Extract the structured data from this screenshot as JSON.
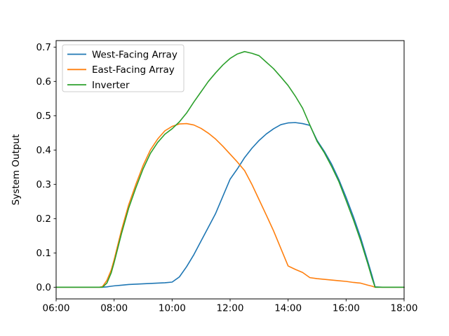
{
  "figure": {
    "background": "#ffffff"
  },
  "chart_data": {
    "type": "line",
    "title": "",
    "xlabel": "",
    "ylabel": "System Output",
    "grid": false,
    "xlim_hours": [
      6,
      18
    ],
    "ylim": [
      -0.034,
      0.719
    ],
    "axis_color": "#000000",
    "x_ticks": [
      {
        "label": "06:00",
        "hour": 6
      },
      {
        "label": "08:00",
        "hour": 8
      },
      {
        "label": "10:00",
        "hour": 10
      },
      {
        "label": "12:00",
        "hour": 12
      },
      {
        "label": "14:00",
        "hour": 14
      },
      {
        "label": "16:00",
        "hour": 16
      },
      {
        "label": "18:00",
        "hour": 18
      }
    ],
    "y_ticks": [
      {
        "label": "0.0",
        "value": 0.0
      },
      {
        "label": "0.1",
        "value": 0.1
      },
      {
        "label": "0.2",
        "value": 0.2
      },
      {
        "label": "0.3",
        "value": 0.3
      },
      {
        "label": "0.4",
        "value": 0.4
      },
      {
        "label": "0.5",
        "value": 0.5
      },
      {
        "label": "0.6",
        "value": 0.6
      },
      {
        "label": "0.7",
        "value": 0.7
      }
    ],
    "legend": {
      "position": "upper-left",
      "border_color": "#cccccc",
      "background": "#ffffff"
    },
    "x_hours": [
      6,
      6.5,
      7,
      7.25,
      7.5,
      7.6,
      7.75,
      7.9,
      8,
      8.25,
      8.5,
      8.75,
      9,
      9.25,
      9.5,
      9.75,
      10,
      10.25,
      10.5,
      10.75,
      11,
      11.25,
      11.5,
      11.75,
      12,
      12.25,
      12.5,
      12.75,
      13,
      13.25,
      13.5,
      13.75,
      14,
      14.25,
      14.5,
      14.75,
      15,
      15.25,
      15.5,
      15.75,
      16,
      16.25,
      16.5,
      16.75,
      16.9,
      17,
      17.25,
      17.5,
      18
    ],
    "series": [
      {
        "name": "West-Facing Array",
        "color": "#1f77b4",
        "values": [
          0,
          0,
          0,
          0,
          0,
          0,
          0.001,
          0.003,
          0.004,
          0.006,
          0.008,
          0.009,
          0.01,
          0.011,
          0.012,
          0.013,
          0.015,
          0.03,
          0.06,
          0.095,
          0.135,
          0.175,
          0.215,
          0.265,
          0.315,
          0.345,
          0.378,
          0.405,
          0.428,
          0.447,
          0.462,
          0.474,
          0.479,
          0.48,
          0.477,
          0.472,
          0.428,
          0.396,
          0.359,
          0.314,
          0.262,
          0.206,
          0.145,
          0.075,
          0.032,
          0.001,
          0,
          0,
          0
        ]
      },
      {
        "name": "East-Facing Array",
        "color": "#ff7f0e",
        "values": [
          0,
          0,
          0,
          0,
          0,
          0.002,
          0.02,
          0.05,
          0.08,
          0.165,
          0.24,
          0.3,
          0.355,
          0.4,
          0.432,
          0.456,
          0.469,
          0.476,
          0.477,
          0.473,
          0.463,
          0.449,
          0.432,
          0.411,
          0.388,
          0.365,
          0.34,
          0.3,
          0.255,
          0.21,
          0.164,
          0.113,
          0.062,
          0.052,
          0.043,
          0.028,
          0.025,
          0.023,
          0.021,
          0.019,
          0.017,
          0.014,
          0.012,
          0.006,
          0.003,
          0,
          0,
          0,
          0
        ]
      },
      {
        "name": "Inverter",
        "color": "#2ca02c",
        "values": [
          0,
          0,
          0,
          0,
          0,
          0,
          0.012,
          0.042,
          0.072,
          0.155,
          0.23,
          0.29,
          0.345,
          0.39,
          0.422,
          0.446,
          0.462,
          0.482,
          0.508,
          0.54,
          0.57,
          0.6,
          0.625,
          0.648,
          0.667,
          0.68,
          0.687,
          0.682,
          0.675,
          0.656,
          0.637,
          0.613,
          0.588,
          0.557,
          0.522,
          0.473,
          0.425,
          0.392,
          0.352,
          0.308,
          0.253,
          0.197,
          0.136,
          0.068,
          0.025,
          0,
          0,
          0,
          0
        ]
      }
    ]
  }
}
